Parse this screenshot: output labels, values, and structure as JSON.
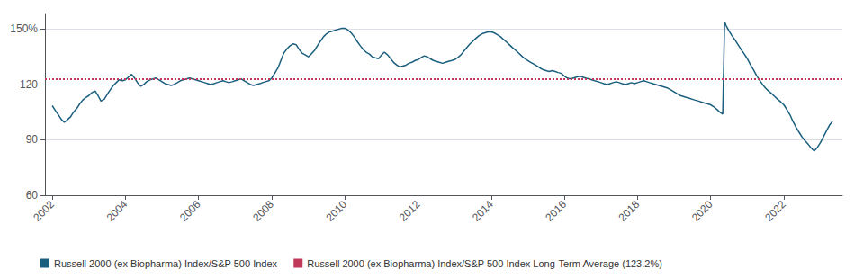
{
  "chart_data": {
    "type": "line",
    "x": [
      2002.0,
      2002.08,
      2002.17,
      2002.25,
      2002.33,
      2002.42,
      2002.5,
      2002.58,
      2002.67,
      2002.75,
      2002.83,
      2002.92,
      2003.0,
      2003.08,
      2003.17,
      2003.25,
      2003.33,
      2003.42,
      2003.5,
      2003.58,
      2003.67,
      2003.75,
      2003.83,
      2003.92,
      2004.0,
      2004.08,
      2004.17,
      2004.25,
      2004.33,
      2004.42,
      2004.5,
      2004.58,
      2004.67,
      2004.75,
      2004.83,
      2004.92,
      2005.0,
      2005.08,
      2005.17,
      2005.25,
      2005.33,
      2005.42,
      2005.5,
      2005.58,
      2005.67,
      2005.75,
      2005.83,
      2005.92,
      2006.0,
      2006.08,
      2006.17,
      2006.25,
      2006.33,
      2006.42,
      2006.5,
      2006.58,
      2006.67,
      2006.75,
      2006.83,
      2006.92,
      2007.0,
      2007.08,
      2007.17,
      2007.25,
      2007.33,
      2007.42,
      2007.5,
      2007.58,
      2007.67,
      2007.75,
      2007.83,
      2007.92,
      2008.0,
      2008.08,
      2008.17,
      2008.25,
      2008.33,
      2008.42,
      2008.5,
      2008.58,
      2008.67,
      2008.75,
      2008.83,
      2008.92,
      2009.0,
      2009.08,
      2009.17,
      2009.25,
      2009.33,
      2009.42,
      2009.5,
      2009.58,
      2009.67,
      2009.75,
      2009.83,
      2009.92,
      2010.0,
      2010.08,
      2010.17,
      2010.25,
      2010.33,
      2010.42,
      2010.5,
      2010.58,
      2010.67,
      2010.75,
      2010.83,
      2010.92,
      2011.0,
      2011.08,
      2011.17,
      2011.25,
      2011.33,
      2011.42,
      2011.5,
      2011.58,
      2011.67,
      2011.75,
      2011.83,
      2011.92,
      2012.0,
      2012.08,
      2012.17,
      2012.25,
      2012.33,
      2012.42,
      2012.5,
      2012.58,
      2012.67,
      2012.75,
      2012.83,
      2012.92,
      2013.0,
      2013.08,
      2013.17,
      2013.25,
      2013.33,
      2013.42,
      2013.5,
      2013.58,
      2013.67,
      2013.75,
      2013.83,
      2013.92,
      2014.0,
      2014.08,
      2014.17,
      2014.25,
      2014.33,
      2014.42,
      2014.5,
      2014.58,
      2014.67,
      2014.75,
      2014.83,
      2014.92,
      2015.0,
      2015.08,
      2015.17,
      2015.25,
      2015.33,
      2015.42,
      2015.5,
      2015.58,
      2015.67,
      2015.75,
      2015.83,
      2015.92,
      2016.0,
      2016.08,
      2016.17,
      2016.25,
      2016.33,
      2016.42,
      2016.5,
      2016.58,
      2016.67,
      2016.75,
      2016.83,
      2016.92,
      2017.0,
      2017.08,
      2017.17,
      2017.25,
      2017.33,
      2017.42,
      2017.5,
      2017.58,
      2017.67,
      2017.75,
      2017.83,
      2017.92,
      2018.0,
      2018.08,
      2018.17,
      2018.25,
      2018.33,
      2018.42,
      2018.5,
      2018.58,
      2018.67,
      2018.75,
      2018.83,
      2018.92,
      2019.0,
      2019.08,
      2019.17,
      2019.25,
      2019.33,
      2019.42,
      2019.5,
      2019.58,
      2019.67,
      2019.75,
      2019.83,
      2019.92,
      2020.0,
      2020.08,
      2020.17,
      2020.25,
      2020.33,
      2020.38,
      2020.42,
      2020.5,
      2020.58,
      2020.67,
      2020.75,
      2020.83,
      2020.92,
      2021.0,
      2021.08,
      2021.17,
      2021.25,
      2021.33,
      2021.42,
      2021.5,
      2021.58,
      2021.67,
      2021.75,
      2021.83,
      2021.92,
      2022.0,
      2022.08,
      2022.17,
      2022.25,
      2022.33,
      2022.42,
      2022.5,
      2022.58,
      2022.67,
      2022.75,
      2022.83,
      2022.92,
      2023.0,
      2023.08,
      2023.17,
      2023.25,
      2023.33
    ],
    "series": [
      {
        "name": "Russell 2000 (ex Biopharma) Index/S&P 500 Index",
        "color": "#1b5f7e",
        "values": [
          108.5,
          106.0,
          103.5,
          101.0,
          99.5,
          101.0,
          102.5,
          105.0,
          107.0,
          109.5,
          111.5,
          113.0,
          114.0,
          115.5,
          116.5,
          114.0,
          111.0,
          112.0,
          114.5,
          117.0,
          119.5,
          121.0,
          122.5,
          122.0,
          122.5,
          124.0,
          125.5,
          123.5,
          121.0,
          119.0,
          120.0,
          121.5,
          122.5,
          123.0,
          123.5,
          122.5,
          121.5,
          120.5,
          120.0,
          119.5,
          120.0,
          121.0,
          122.0,
          122.5,
          123.0,
          123.5,
          123.0,
          122.5,
          122.0,
          121.5,
          121.0,
          120.5,
          120.0,
          120.5,
          121.0,
          121.5,
          122.0,
          121.5,
          121.0,
          121.5,
          122.0,
          122.5,
          123.0,
          122.0,
          121.0,
          120.0,
          119.5,
          120.0,
          120.5,
          121.0,
          121.5,
          122.0,
          123.5,
          126.0,
          129.0,
          133.0,
          137.0,
          139.5,
          141.0,
          142.0,
          141.5,
          139.0,
          137.0,
          136.0,
          135.0,
          136.5,
          138.5,
          141.0,
          143.5,
          146.0,
          147.5,
          148.5,
          149.0,
          149.5,
          150.0,
          150.5,
          150.5,
          149.5,
          148.0,
          146.0,
          143.5,
          141.0,
          139.0,
          137.5,
          136.5,
          135.0,
          134.5,
          134.0,
          136.0,
          137.5,
          136.0,
          134.0,
          132.0,
          130.5,
          129.5,
          130.0,
          130.5,
          131.5,
          132.0,
          133.0,
          133.5,
          134.5,
          135.5,
          135.0,
          134.0,
          133.0,
          132.5,
          132.0,
          131.5,
          132.0,
          132.5,
          133.0,
          133.5,
          134.5,
          136.0,
          138.0,
          140.0,
          142.0,
          143.5,
          145.0,
          146.5,
          147.5,
          148.0,
          148.5,
          148.5,
          148.0,
          147.0,
          146.0,
          144.5,
          143.0,
          141.5,
          140.0,
          138.5,
          137.0,
          135.5,
          134.0,
          133.0,
          132.0,
          131.0,
          130.0,
          129.0,
          128.0,
          127.5,
          127.0,
          127.5,
          127.0,
          126.5,
          126.0,
          124.5,
          123.5,
          123.0,
          123.5,
          124.0,
          124.5,
          124.0,
          123.5,
          123.0,
          122.5,
          122.0,
          121.5,
          121.0,
          120.5,
          120.0,
          120.5,
          121.0,
          121.5,
          121.0,
          120.5,
          120.0,
          120.5,
          121.0,
          120.5,
          121.0,
          121.5,
          122.0,
          121.5,
          121.0,
          120.5,
          120.0,
          119.5,
          119.0,
          118.5,
          118.0,
          117.0,
          116.0,
          115.0,
          114.0,
          113.5,
          113.0,
          112.5,
          112.0,
          111.5,
          111.0,
          110.5,
          110.0,
          109.5,
          109.0,
          108.0,
          106.5,
          105.0,
          104.0,
          154.0,
          152.0,
          149.0,
          146.5,
          144.0,
          141.5,
          139.0,
          136.5,
          134.0,
          131.0,
          128.0,
          125.0,
          122.5,
          120.0,
          118.0,
          116.5,
          115.0,
          113.5,
          112.0,
          110.5,
          109.0,
          106.5,
          103.5,
          100.0,
          97.0,
          94.0,
          91.5,
          89.5,
          87.5,
          85.5,
          84.0,
          86.0,
          88.5,
          91.5,
          95.0,
          98.0,
          100.0
        ]
      },
      {
        "name": "Russell 2000 (ex Biopharma) Index/S&P 500 Index Long-Term Average (123.2%)",
        "color": "#c0395a",
        "type": "hline",
        "line_style": "dotted",
        "value": 123.2
      }
    ],
    "xlim": [
      2001.8,
      2023.6
    ],
    "xticks": [
      2002,
      2004,
      2006,
      2008,
      2010,
      2012,
      2014,
      2016,
      2018,
      2020,
      2022
    ],
    "ylim": [
      60,
      158
    ],
    "yticks": [
      60,
      90,
      120,
      {
        "value": 150,
        "label": "150%"
      }
    ],
    "grid": true
  }
}
